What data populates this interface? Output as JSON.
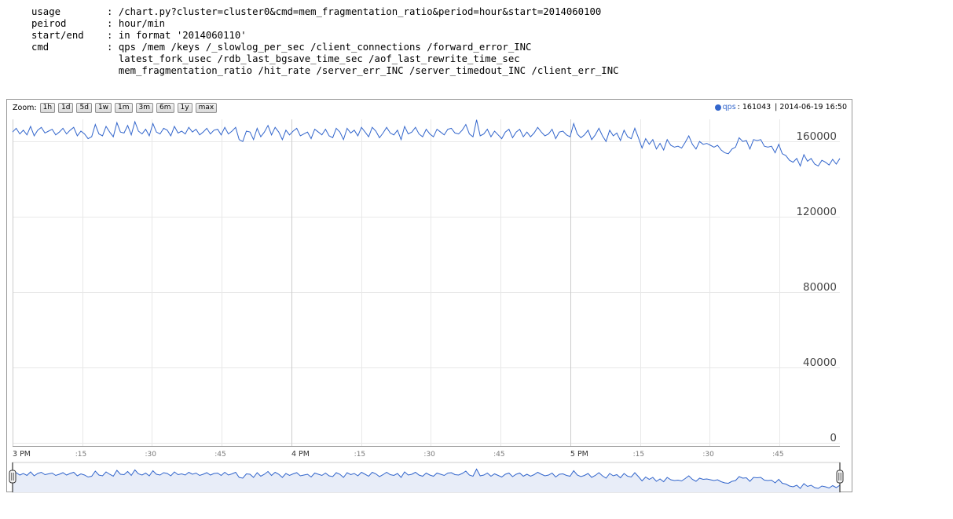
{
  "usage": [
    {
      "key": "usage",
      "value": "/chart.py?cluster=cluster0&cmd=mem_fragmentation_ratio&period=hour&start=2014060100"
    },
    {
      "key": "peirod",
      "value": "hour/min"
    },
    {
      "key": "start/end",
      "value": "in format '2014060110'"
    },
    {
      "key": "cmd",
      "value": "qps /mem /keys /_slowlog_per_sec /client_connections /forward_error_INC"
    },
    {
      "key": "",
      "value": "latest_fork_usec /rdb_last_bgsave_time_sec /aof_last_rewrite_time_sec"
    },
    {
      "key": "",
      "value": "mem_fragmentation_ratio /hit_rate /server_err_INC /server_timedout_INC /client_err_INC"
    }
  ],
  "zoom": {
    "label": "Zoom:",
    "buttons": [
      "1h",
      "1d",
      "5d",
      "1w",
      "1m",
      "3m",
      "6m",
      "1y",
      "max"
    ]
  },
  "legend": {
    "series": "qps",
    "value": ": 161043",
    "date": "| 2014-06-19 16:50"
  },
  "colors": {
    "line": "#3366cc",
    "overview_fill": "#e8edf8",
    "grid": "#e8e8e8",
    "major_grid": "#cccccc"
  },
  "chart_data": {
    "type": "line",
    "title": "",
    "xlabel": "",
    "ylabel": "",
    "ylim": [
      0,
      170000
    ],
    "yticks": [
      "0",
      "40000",
      "80000",
      "120000",
      "160000"
    ],
    "yticks_values": [
      0,
      40000,
      80000,
      120000,
      160000
    ],
    "xticks": [
      {
        "label": "3 PM",
        "minute": 0,
        "major": true
      },
      {
        "label": ":15",
        "minute": 15,
        "major": false
      },
      {
        "label": ":30",
        "minute": 30,
        "major": false
      },
      {
        "label": ":45",
        "minute": 45,
        "major": false
      },
      {
        "label": "4 PM",
        "minute": 60,
        "major": true
      },
      {
        "label": ":15",
        "minute": 75,
        "major": false
      },
      {
        "label": ":30",
        "minute": 90,
        "major": false
      },
      {
        "label": ":45",
        "minute": 105,
        "major": false
      },
      {
        "label": "5 PM",
        "minute": 120,
        "major": true
      },
      {
        "label": ":15",
        "minute": 135,
        "major": false
      },
      {
        "label": ":30",
        "minute": 150,
        "major": false
      },
      {
        "label": ":45",
        "minute": 165,
        "major": false
      }
    ],
    "x_minutes_range": [
      0,
      178
    ],
    "series": [
      {
        "name": "qps",
        "values": [
          162000,
          164000,
          161000,
          163000,
          160500,
          165000,
          160000,
          163000,
          164500,
          161500,
          162500,
          163500,
          160500,
          162000,
          164000,
          161000,
          163000,
          164500,
          160000,
          162500,
          161000,
          158500,
          159500,
          166000,
          161000,
          160000,
          165000,
          162000,
          159500,
          167000,
          162000,
          161500,
          165500,
          160500,
          167500,
          162500,
          161000,
          163500,
          160000,
          166500,
          162000,
          161000,
          164000,
          163000,
          160000,
          165000,
          161500,
          162500,
          161000,
          164500,
          162000,
          163500,
          160500,
          162000,
          164000,
          161000,
          163000,
          163500,
          160500,
          164500,
          161000,
          162500,
          164500,
          158000,
          157000,
          162500,
          162000,
          158000,
          164000,
          159500,
          162000,
          165500,
          160500,
          164500,
          162000,
          158000,
          163000,
          160500,
          162500,
          164000,
          160000,
          161000,
          162000,
          158500,
          163500,
          162000,
          160500,
          163500,
          160000,
          159000,
          164000,
          162000,
          158000,
          164000,
          161500,
          163000,
          160000,
          164500,
          162000,
          159500,
          164500,
          162500,
          159000,
          161500,
          164500,
          161500,
          160500,
          163000,
          158000,
          165000,
          161000,
          162000,
          164500,
          161000,
          159500,
          163500,
          161000,
          159500,
          163500,
          162000,
          160500,
          163500,
          164000,
          161500,
          161000,
          163000,
          166000,
          161000,
          159500,
          168500,
          160000,
          161000,
          163500,
          159500,
          162500,
          160500,
          158500,
          162000,
          163500,
          159000,
          162000,
          163500,
          159500,
          162000,
          159500,
          161500,
          164500,
          162000,
          160000,
          161000,
          163500,
          158500,
          162000,
          162500,
          160500,
          159500,
          166500,
          161000,
          159000,
          160500,
          163000,
          158000,
          160500,
          164000,
          160000,
          157000,
          163000,
          160000,
          161500,
          157500,
          163000,
          159500,
          158500,
          164000,
          159000,
          153500,
          158500,
          155500,
          158000,
          153000,
          156000,
          152500,
          158000,
          155000,
          154000,
          154500,
          153500,
          156500,
          160000,
          155500,
          153000,
          157000,
          155500,
          156000,
          155000,
          154000,
          155000,
          152500,
          151000,
          150500,
          153000,
          154000,
          159000,
          157000,
          157500,
          153000,
          158000,
          157500,
          158000,
          154500,
          154000,
          154500,
          151000,
          155500,
          150500,
          149500,
          147000,
          146000,
          148000,
          144000,
          150000,
          146500,
          148000,
          145000,
          144000,
          147000,
          146000,
          144500,
          147500,
          145000,
          148000
        ]
      }
    ]
  }
}
